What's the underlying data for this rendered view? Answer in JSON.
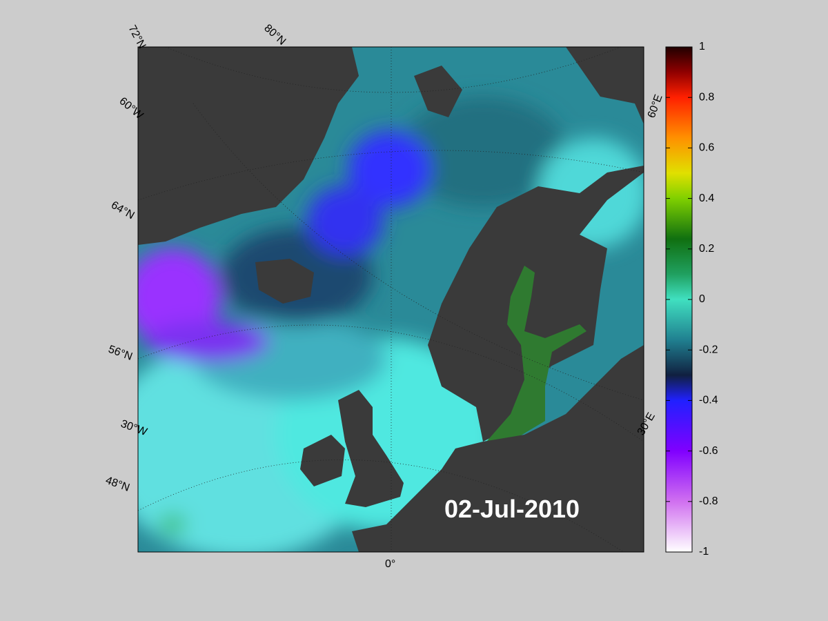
{
  "map": {
    "graticule_labels": [
      "72°N",
      "80°N",
      "60°W",
      "64°N",
      "56°N",
      "30°W",
      "48°N",
      "0°",
      "30°E",
      "60°E"
    ],
    "date": "02-Jul-2010"
  },
  "colorbar": {
    "lim": [
      -1,
      1
    ],
    "ticks": [
      1,
      0.8,
      0.6,
      0.4,
      0.2,
      0,
      -0.2,
      -0.4,
      -0.6,
      -0.8,
      -1
    ]
  }
}
